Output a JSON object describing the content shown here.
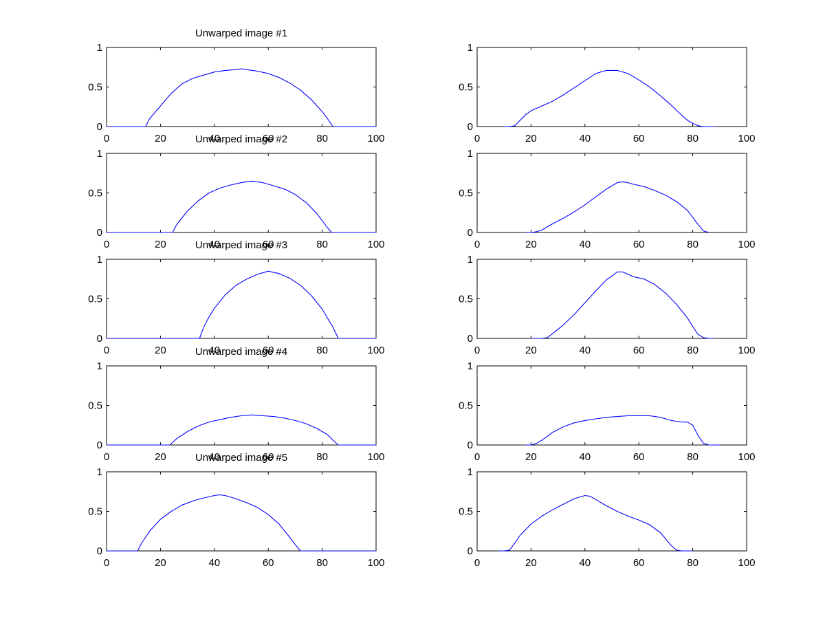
{
  "chart_data": [
    {
      "type": "line",
      "title": "Unwarped image #1",
      "xlim": [
        0,
        100
      ],
      "ylim": [
        0,
        1
      ],
      "xticks": [
        "0",
        "20",
        "40",
        "60",
        "80",
        "100"
      ],
      "yticks": [
        "0",
        "0.5",
        "1"
      ],
      "series": [
        {
          "x": [
            0,
            14.5,
            16,
            20,
            24,
            28,
            32,
            36,
            40,
            44,
            48,
            50,
            52,
            56,
            60,
            64,
            68,
            72,
            76,
            80,
            82,
            84,
            100
          ],
          "y": [
            0,
            0,
            0.1,
            0.26,
            0.42,
            0.54,
            0.61,
            0.65,
            0.69,
            0.71,
            0.72,
            0.73,
            0.72,
            0.7,
            0.67,
            0.62,
            0.55,
            0.46,
            0.34,
            0.19,
            0.1,
            0,
            0
          ]
        }
      ]
    },
    {
      "type": "line",
      "title": "",
      "xlim": [
        0,
        100
      ],
      "ylim": [
        0,
        1
      ],
      "xticks": [
        "0",
        "20",
        "40",
        "60",
        "80",
        "100"
      ],
      "yticks": [
        "0",
        "0.5",
        "1"
      ],
      "series": [
        {
          "x": [
            10,
            12,
            14,
            16,
            18,
            20,
            24,
            28,
            32,
            36,
            40,
            44,
            48,
            52,
            56,
            60,
            64,
            68,
            72,
            76,
            78,
            80,
            82,
            84,
            86,
            89
          ],
          "y": [
            0,
            0,
            0.01,
            0.08,
            0.15,
            0.2,
            0.26,
            0.32,
            0.4,
            0.49,
            0.58,
            0.67,
            0.71,
            0.71,
            0.67,
            0.59,
            0.5,
            0.39,
            0.27,
            0.14,
            0.08,
            0.04,
            0.01,
            0,
            0,
            0
          ]
        }
      ]
    },
    {
      "type": "line",
      "title": "Unwarped image #2",
      "xlim": [
        0,
        100
      ],
      "ylim": [
        0,
        1
      ],
      "xticks": [
        "0",
        "20",
        "40",
        "60",
        "80",
        "100"
      ],
      "yticks": [
        "0",
        "0.5",
        "1"
      ],
      "series": [
        {
          "x": [
            0,
            24.5,
            26,
            30,
            34,
            38,
            42,
            46,
            50,
            54,
            58,
            62,
            66,
            70,
            74,
            78,
            80,
            82,
            83.5,
            100
          ],
          "y": [
            0,
            0,
            0.1,
            0.27,
            0.4,
            0.5,
            0.56,
            0.6,
            0.63,
            0.65,
            0.63,
            0.59,
            0.55,
            0.48,
            0.38,
            0.24,
            0.15,
            0.06,
            0,
            0
          ]
        }
      ]
    },
    {
      "type": "line",
      "title": "",
      "xlim": [
        0,
        100
      ],
      "ylim": [
        0,
        1
      ],
      "xticks": [
        "0",
        "20",
        "40",
        "60",
        "80",
        "100"
      ],
      "yticks": [
        "0",
        "0.5",
        "1"
      ],
      "series": [
        {
          "x": [
            18,
            20,
            22,
            24,
            26,
            28,
            32,
            36,
            40,
            44,
            48,
            52,
            54,
            56,
            58,
            62,
            66,
            70,
            74,
            78,
            80,
            82,
            84,
            86
          ],
          "y": [
            0,
            0,
            0.01,
            0.03,
            0.07,
            0.11,
            0.18,
            0.26,
            0.35,
            0.45,
            0.55,
            0.63,
            0.64,
            0.63,
            0.61,
            0.58,
            0.53,
            0.47,
            0.39,
            0.28,
            0.19,
            0.1,
            0.02,
            0
          ]
        }
      ]
    },
    {
      "type": "line",
      "title": "Unwarped image #3",
      "xlim": [
        0,
        100
      ],
      "ylim": [
        0,
        1
      ],
      "xticks": [
        "0",
        "20",
        "40",
        "60",
        "80",
        "100"
      ],
      "yticks": [
        "0",
        "0.5",
        "1"
      ],
      "series": [
        {
          "x": [
            0,
            34.5,
            36,
            38,
            40,
            44,
            48,
            52,
            56,
            60,
            64,
            68,
            72,
            76,
            80,
            84,
            86,
            100
          ],
          "y": [
            0,
            0,
            0.14,
            0.27,
            0.38,
            0.55,
            0.67,
            0.75,
            0.81,
            0.85,
            0.82,
            0.76,
            0.67,
            0.54,
            0.37,
            0.14,
            0,
            0
          ]
        }
      ]
    },
    {
      "type": "line",
      "title": "",
      "xlim": [
        0,
        100
      ],
      "ylim": [
        0,
        1
      ],
      "xticks": [
        "0",
        "20",
        "40",
        "60",
        "80",
        "100"
      ],
      "yticks": [
        "0",
        "0.5",
        "1"
      ],
      "series": [
        {
          "x": [
            20,
            22,
            24,
            26,
            28,
            32,
            36,
            40,
            44,
            48,
            52,
            54,
            56,
            58,
            62,
            66,
            70,
            74,
            78,
            80,
            82,
            84,
            86,
            88
          ],
          "y": [
            0,
            0,
            0,
            0.01,
            0.06,
            0.17,
            0.3,
            0.45,
            0.6,
            0.74,
            0.84,
            0.84,
            0.81,
            0.78,
            0.75,
            0.68,
            0.57,
            0.43,
            0.26,
            0.15,
            0.05,
            0.01,
            0,
            0
          ]
        }
      ]
    },
    {
      "type": "line",
      "title": "Unwarped image #4",
      "xlim": [
        0,
        100
      ],
      "ylim": [
        0,
        1
      ],
      "xticks": [
        "0",
        "20",
        "40",
        "60",
        "80",
        "100"
      ],
      "yticks": [
        "0",
        "0.5",
        "1"
      ],
      "series": [
        {
          "x": [
            0,
            23.5,
            26,
            30,
            34,
            38,
            42,
            46,
            50,
            54,
            58,
            62,
            66,
            70,
            74,
            78,
            82,
            84,
            86,
            100
          ],
          "y": [
            0,
            0,
            0.08,
            0.17,
            0.24,
            0.29,
            0.32,
            0.35,
            0.37,
            0.38,
            0.37,
            0.36,
            0.34,
            0.31,
            0.27,
            0.21,
            0.13,
            0.06,
            0,
            0
          ]
        }
      ]
    },
    {
      "type": "line",
      "title": "",
      "xlim": [
        0,
        100
      ],
      "ylim": [
        0,
        1
      ],
      "xticks": [
        "0",
        "20",
        "40",
        "60",
        "80",
        "100"
      ],
      "yticks": [
        "0",
        "0.5",
        "1"
      ],
      "series": [
        {
          "x": [
            18,
            20,
            22,
            24,
            26,
            28,
            32,
            36,
            40,
            44,
            48,
            52,
            56,
            60,
            64,
            66,
            68,
            70,
            72,
            74,
            76,
            78,
            80,
            82,
            84,
            86,
            88,
            90
          ],
          "y": [
            0,
            0,
            0.02,
            0.06,
            0.11,
            0.16,
            0.23,
            0.28,
            0.31,
            0.33,
            0.35,
            0.36,
            0.37,
            0.37,
            0.37,
            0.36,
            0.35,
            0.33,
            0.31,
            0.3,
            0.29,
            0.29,
            0.25,
            0.12,
            0.02,
            0,
            0,
            0
          ]
        }
      ]
    },
    {
      "type": "line",
      "title": "Unwarped image #5",
      "xlim": [
        0,
        100
      ],
      "ylim": [
        0,
        1
      ],
      "xticks": [
        "0",
        "20",
        "40",
        "60",
        "80",
        "100"
      ],
      "yticks": [
        "0",
        "0.5",
        "1"
      ],
      "series": [
        {
          "x": [
            0,
            11.5,
            13,
            16,
            20,
            24,
            28,
            32,
            36,
            40,
            42,
            44,
            48,
            52,
            56,
            60,
            64,
            68,
            70,
            72,
            100
          ],
          "y": [
            0,
            0,
            0.1,
            0.25,
            0.4,
            0.5,
            0.58,
            0.63,
            0.67,
            0.7,
            0.71,
            0.7,
            0.66,
            0.61,
            0.55,
            0.46,
            0.34,
            0.17,
            0.08,
            0,
            0
          ]
        }
      ]
    },
    {
      "type": "line",
      "title": "",
      "xlim": [
        0,
        100
      ],
      "ylim": [
        0,
        1
      ],
      "xticks": [
        "0",
        "20",
        "40",
        "60",
        "80",
        "100"
      ],
      "yticks": [
        "0",
        "0.5",
        "1"
      ],
      "series": [
        {
          "x": [
            8,
            10,
            12,
            14,
            16,
            20,
            24,
            28,
            32,
            36,
            40,
            42,
            44,
            48,
            52,
            56,
            60,
            64,
            68,
            70,
            72,
            74,
            76,
            78,
            80
          ],
          "y": [
            0,
            0,
            0.01,
            0.1,
            0.2,
            0.34,
            0.44,
            0.52,
            0.59,
            0.66,
            0.7,
            0.69,
            0.65,
            0.57,
            0.5,
            0.44,
            0.39,
            0.33,
            0.23,
            0.15,
            0.07,
            0.01,
            0,
            0,
            0
          ]
        }
      ]
    }
  ],
  "colors": {
    "line": "#0000ff",
    "axes": "#000000",
    "background": "#ffffff"
  }
}
